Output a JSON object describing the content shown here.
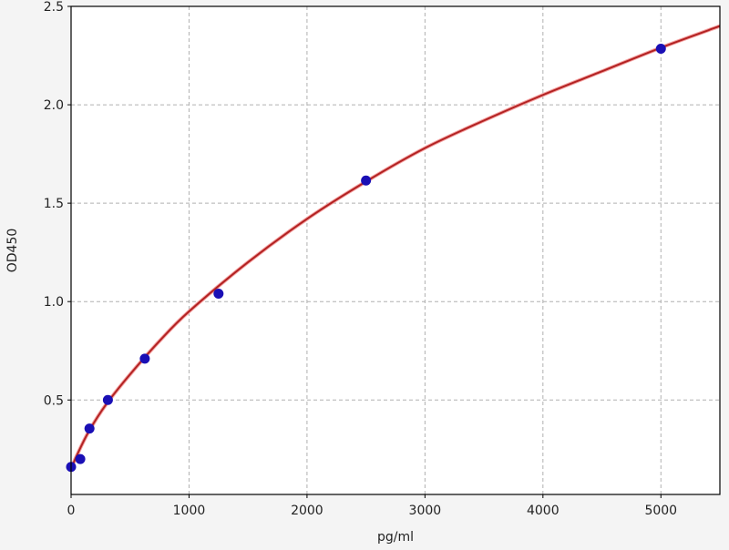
{
  "chart_data": {
    "type": "scatter",
    "title": "",
    "xlabel": "pg/ml",
    "ylabel": "OD450",
    "xlim": [
      0,
      5500
    ],
    "ylim": [
      0.02,
      2.5
    ],
    "xticks": [
      0,
      1000,
      2000,
      3000,
      4000,
      5000
    ],
    "xtick_labels": [
      "0",
      "1000",
      "2000",
      "3000",
      "4000",
      "5000"
    ],
    "yticks": [
      0.5,
      1.0,
      1.5,
      2.0,
      2.5
    ],
    "ytick_labels": [
      "0.5",
      "1.0",
      "1.5",
      "2.0",
      "2.5"
    ],
    "grid": true,
    "points": {
      "x": [
        0,
        78,
        156,
        312,
        625,
        1250,
        2500,
        5000
      ],
      "y": [
        0.16,
        0.2,
        0.355,
        0.5,
        0.71,
        1.04,
        1.615,
        2.285
      ],
      "color": "#1a0fb5"
    },
    "fit_curve": {
      "x": [
        0,
        50,
        150,
        300,
        500,
        750,
        1000,
        1500,
        2000,
        2500,
        3000,
        3500,
        4000,
        4500,
        5000,
        5500
      ],
      "y": [
        0.15,
        0.22,
        0.34,
        0.48,
        0.63,
        0.8,
        0.95,
        1.2,
        1.42,
        1.61,
        1.78,
        1.92,
        2.05,
        2.17,
        2.29,
        2.4
      ],
      "color": "#b22222"
    }
  }
}
